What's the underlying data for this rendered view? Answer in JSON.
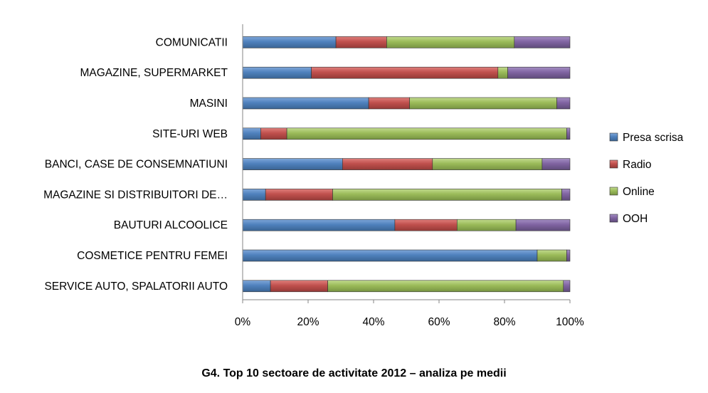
{
  "chart_data": {
    "type": "bar",
    "orientation": "horizontal",
    "stacked": "percent",
    "categories": [
      "COMUNICATII",
      "MAGAZINE, SUPERMARKET",
      "MASINI",
      "SITE-URI WEB",
      "BANCI, CASE DE CONSEMNATIUNI",
      "MAGAZINE SI DISTRIBUITORI DE…",
      "BAUTURI ALCOOLICE",
      "COSMETICE PENTRU FEMEI",
      "SERVICE AUTO, SPALATORII AUTO"
    ],
    "series": [
      {
        "name": "Presa scrisa",
        "color": "#4F81BD",
        "values": [
          28.5,
          21,
          38.5,
          5.5,
          30.5,
          7,
          46.5,
          90,
          8.5
        ]
      },
      {
        "name": "Radio",
        "color": "#C0504D",
        "values": [
          15.5,
          57,
          12.5,
          8,
          27.5,
          20.5,
          19,
          0,
          17.5
        ]
      },
      {
        "name": "Online",
        "color": "#9BBB59",
        "values": [
          39,
          3,
          45,
          85.5,
          33.5,
          70,
          18,
          9,
          72
        ]
      },
      {
        "name": "OOH",
        "color": "#8064A2",
        "values": [
          17,
          19,
          4,
          1,
          8.5,
          2.5,
          16.5,
          1,
          2
        ]
      }
    ],
    "xticks": [
      "0%",
      "20%",
      "40%",
      "60%",
      "80%",
      "100%"
    ],
    "xlim": [
      0,
      100
    ],
    "legend_position": "right",
    "grid": false
  },
  "caption": "G4. Top 10 sectoare de activitate 2012 – analiza pe medii"
}
